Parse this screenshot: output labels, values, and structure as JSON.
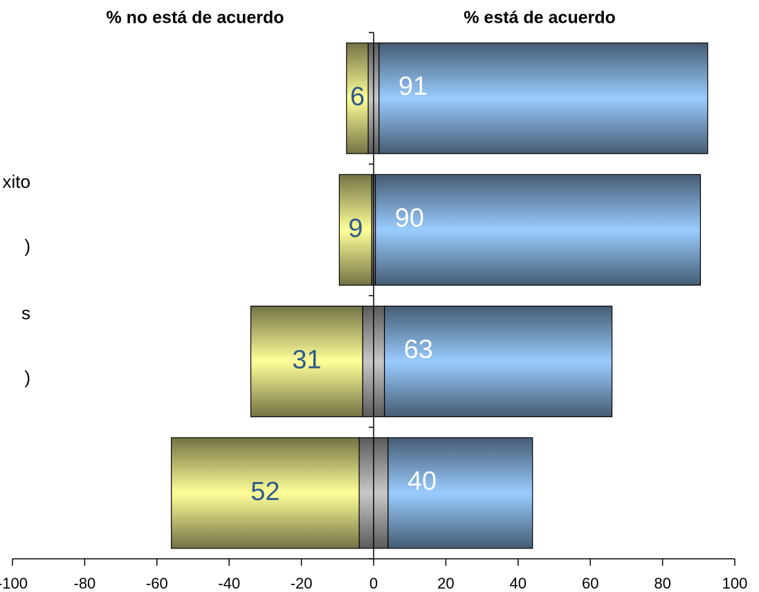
{
  "chart_data": {
    "type": "diverging-bar",
    "titles": [
      "% no está de acuerdo",
      "% está de acuerdo"
    ],
    "categories": [
      null,
      [
        "xito",
        ")"
      ],
      [
        "s",
        ")"
      ],
      null
    ],
    "series": [
      {
        "role": "negative",
        "color": "#ffff99",
        "values": [
          6,
          9,
          31,
          52
        ],
        "label_color": "#2f5a8c"
      },
      {
        "role": "center",
        "color": "#c8c8c8",
        "values": [
          3,
          1,
          6,
          8
        ]
      },
      {
        "role": "positive",
        "color": "#99ccff",
        "values": [
          91,
          90,
          63,
          40
        ],
        "label_color": "#ffffff"
      }
    ],
    "xlim": [
      -100,
      100
    ],
    "xticks": [
      -100,
      -80,
      -60,
      -40,
      -20,
      0,
      20,
      40,
      60,
      80,
      100
    ]
  }
}
